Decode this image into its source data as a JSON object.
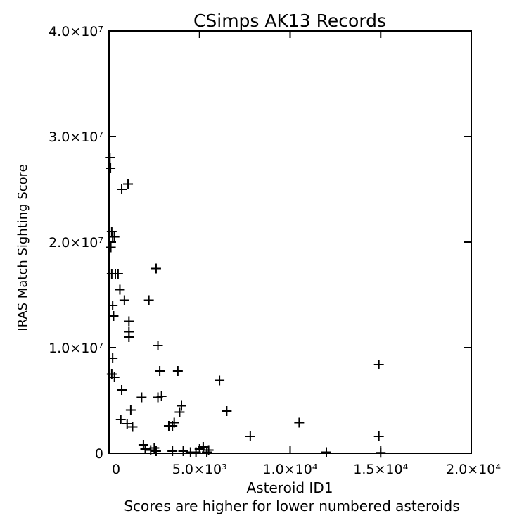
{
  "chart_data": {
    "type": "scatter",
    "title": "CSimps AK13 Records",
    "xlabel": "Asteroid ID1",
    "ylabel": "IRAS Match Sighting Score",
    "caption": "Scores are higher for lower numbered asteroids",
    "xlim": [
      0,
      20000
    ],
    "ylim": [
      0,
      40000000
    ],
    "x_ticks": [
      {
        "value": 0,
        "label": "0"
      },
      {
        "value": 5000,
        "label": "5.0×10³"
      },
      {
        "value": 10000,
        "label": "1.0×10⁴"
      },
      {
        "value": 15000,
        "label": "1.5×10⁴"
      },
      {
        "value": 20000,
        "label": "2.0×10⁴"
      }
    ],
    "y_ticks": [
      {
        "value": 0,
        "label": "0"
      },
      {
        "value": 10000000,
        "label": "1.0×10⁷"
      },
      {
        "value": 20000000,
        "label": "2.0×10⁷"
      },
      {
        "value": 30000000,
        "label": "3.0×10⁷"
      },
      {
        "value": 40000000,
        "label": "4.0×10⁷"
      }
    ],
    "grid": false,
    "marker": "plus",
    "series": [
      {
        "points": [
          [
            50,
            28000000
          ],
          [
            80,
            27000000
          ],
          [
            150,
            21000000
          ],
          [
            200,
            20500000
          ],
          [
            300,
            20500000
          ],
          [
            100,
            19500000
          ],
          [
            150,
            17000000
          ],
          [
            350,
            17000000
          ],
          [
            500,
            17000000
          ],
          [
            200,
            14000000
          ],
          [
            250,
            13000000
          ],
          [
            600,
            15500000
          ],
          [
            850,
            14500000
          ],
          [
            1100,
            12500000
          ],
          [
            1100,
            11500000
          ],
          [
            1100,
            11000000
          ],
          [
            700,
            25000000
          ],
          [
            1050,
            25500000
          ],
          [
            200,
            9000000
          ],
          [
            150,
            7500000
          ],
          [
            300,
            7200000
          ],
          [
            700,
            6000000
          ],
          [
            650,
            3200000
          ],
          [
            1000,
            2800000
          ],
          [
            1200,
            4100000
          ],
          [
            1300,
            2500000
          ],
          [
            1800,
            5300000
          ],
          [
            1900,
            800000
          ],
          [
            2000,
            400000
          ],
          [
            2300,
            300000
          ],
          [
            2200,
            14500000
          ],
          [
            2600,
            17500000
          ],
          [
            2700,
            10200000
          ],
          [
            2800,
            7800000
          ],
          [
            2700,
            5300000
          ],
          [
            2900,
            5400000
          ],
          [
            3300,
            2600000
          ],
          [
            3500,
            2600000
          ],
          [
            3600,
            2900000
          ],
          [
            3900,
            3900000
          ],
          [
            4000,
            4500000
          ],
          [
            3800,
            7800000
          ],
          [
            2500,
            500000
          ],
          [
            2600,
            200000
          ],
          [
            3500,
            200000
          ],
          [
            4100,
            200000
          ],
          [
            4500,
            100000
          ],
          [
            4800,
            100000
          ],
          [
            5000,
            400000
          ],
          [
            5200,
            600000
          ],
          [
            5500,
            300000
          ],
          [
            5400,
            100000
          ],
          [
            6100,
            6900000
          ],
          [
            6500,
            4000000
          ],
          [
            7800,
            1600000
          ],
          [
            10500,
            2900000
          ],
          [
            12000,
            100000
          ],
          [
            14900,
            8400000
          ],
          [
            14900,
            1600000
          ],
          [
            15000,
            50000
          ]
        ]
      }
    ]
  }
}
